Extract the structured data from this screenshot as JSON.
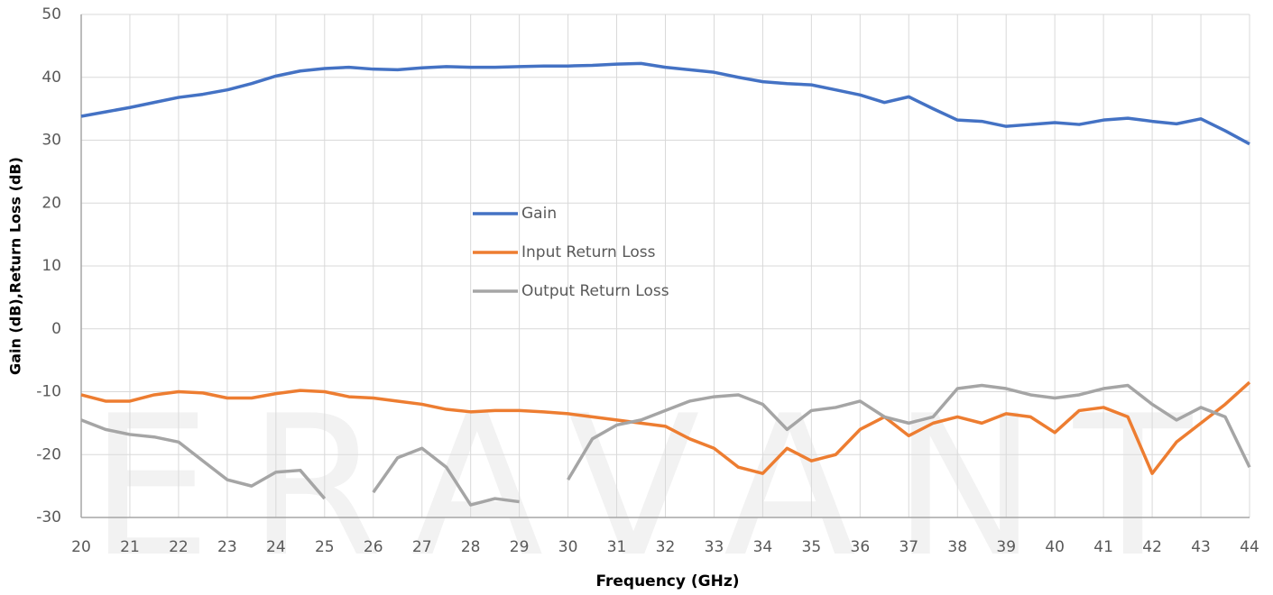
{
  "chart_data": {
    "type": "line",
    "watermark": "ERAVANT",
    "xlabel": "Frequency (GHz)",
    "ylabel": "Gain (dB),Return Loss (dB)",
    "x": [
      20,
      20.5,
      21,
      21.5,
      22,
      22.5,
      23,
      23.5,
      24,
      24.5,
      25,
      25.5,
      26,
      26.5,
      27,
      27.5,
      28,
      28.5,
      29,
      29.5,
      30,
      30.5,
      31,
      31.5,
      32,
      32.5,
      33,
      33.5,
      34,
      34.5,
      35,
      35.5,
      36,
      36.5,
      37,
      37.5,
      38,
      38.5,
      39,
      39.5,
      40,
      40.5,
      41,
      41.5,
      42,
      42.5,
      43,
      43.5,
      44
    ],
    "series": [
      {
        "name": "Gain",
        "color": "#4472c4",
        "values": [
          33.8,
          34.5,
          35.2,
          36,
          36.8,
          37.3,
          38,
          39,
          40.2,
          41,
          41.4,
          41.6,
          41.3,
          41.2,
          41.5,
          41.7,
          41.6,
          41.6,
          41.7,
          41.8,
          41.8,
          41.9,
          42.1,
          42.2,
          41.6,
          41.2,
          40.8,
          40,
          39.3,
          39,
          38.8,
          38,
          37.2,
          36,
          36.9,
          35,
          33.2,
          33,
          32.2,
          32.5,
          32.8,
          32.5,
          33.2,
          33.5,
          33,
          32.6,
          33.4,
          31.5,
          29.4
        ]
      },
      {
        "name": "Input Return Loss",
        "color": "#ed7d31",
        "values": [
          -10.5,
          -11.5,
          -11.5,
          -10.5,
          -10,
          -10.2,
          -11,
          -11,
          -10.3,
          -9.8,
          -10,
          -10.8,
          -11,
          -11.5,
          -12,
          -12.8,
          -13.2,
          -13,
          -13,
          -13.2,
          -13.5,
          -14,
          -14.5,
          -15,
          -15.5,
          -17.5,
          -19,
          -22,
          -23,
          -19,
          -21,
          -20,
          -16,
          -14,
          -17,
          -15,
          -14,
          -15,
          -13.5,
          -14,
          -16.5,
          -13,
          -12.5,
          -14,
          -23,
          -18,
          -15,
          -12,
          -8.5
        ]
      },
      {
        "name": "Output Return Loss",
        "color": "#a5a5a5",
        "values": [
          -14.5,
          -16,
          -16.8,
          -17.2,
          -18,
          -21,
          -24,
          -25,
          -22.8,
          -22.5,
          -27,
          null,
          -26,
          -20.5,
          -19,
          -22,
          -28,
          -27,
          -27.5,
          null,
          -24,
          -17.5,
          -15.3,
          -14.5,
          -13,
          -11.5,
          -10.8,
          -10.5,
          -12,
          -16,
          -13,
          -12.5,
          -11.5,
          -14,
          -15,
          -14,
          -9.5,
          -9,
          -9.5,
          -10.5,
          -11,
          -10.5,
          -9.5,
          -9,
          -12,
          -14.5,
          -12.5,
          -14,
          -22
        ]
      }
    ],
    "xlim": [
      20,
      44
    ],
    "xticks": [
      20,
      21,
      22,
      23,
      24,
      25,
      26,
      27,
      28,
      29,
      30,
      31,
      32,
      33,
      34,
      35,
      36,
      37,
      38,
      39,
      40,
      41,
      42,
      43,
      44
    ],
    "ylim": [
      -30,
      50
    ],
    "yticks": [
      -30,
      -20,
      -10,
      0,
      10,
      20,
      30,
      40,
      50
    ],
    "grid": true
  }
}
